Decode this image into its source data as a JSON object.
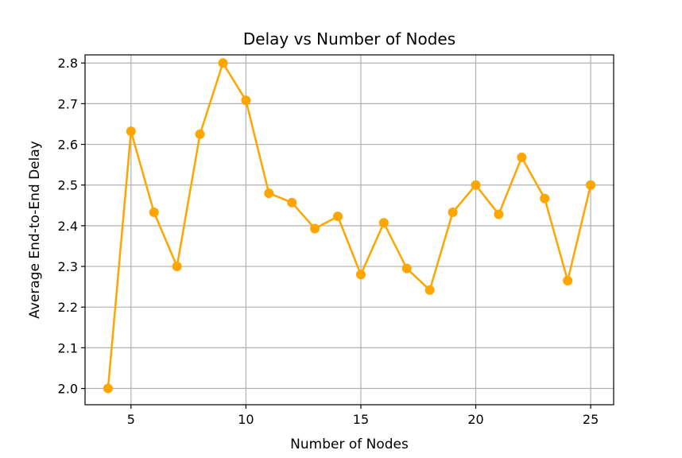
{
  "chart_data": {
    "type": "line",
    "title": "Delay vs Number of Nodes",
    "xlabel": "Number of Nodes",
    "ylabel": "Average End-to-End Delay",
    "xlim": [
      3,
      26
    ],
    "ylim": [
      1.96,
      2.82
    ],
    "grid": true,
    "color": "#FFA500",
    "x_ticks": [
      5,
      10,
      15,
      20,
      25
    ],
    "y_ticks": [
      2.0,
      2.1,
      2.2,
      2.3,
      2.4,
      2.5,
      2.6,
      2.7,
      2.8
    ],
    "x_tick_labels": [
      "5",
      "10",
      "15",
      "20",
      "25"
    ],
    "y_tick_labels": [
      "2.0",
      "2.1",
      "2.2",
      "2.3",
      "2.4",
      "2.5",
      "2.6",
      "2.7",
      "2.8"
    ],
    "series": [
      {
        "x": [
          4,
          5,
          6,
          7,
          8,
          9,
          10,
          11,
          12,
          13,
          14,
          15,
          16,
          17,
          18,
          19,
          20,
          21,
          22,
          23,
          24,
          25
        ],
        "values": [
          2.0,
          2.632,
          2.433,
          2.3,
          2.625,
          2.8,
          2.708,
          2.48,
          2.457,
          2.393,
          2.423,
          2.28,
          2.407,
          2.295,
          2.242,
          2.433,
          2.5,
          2.428,
          2.568,
          2.467,
          2.265,
          2.5
        ]
      }
    ]
  }
}
